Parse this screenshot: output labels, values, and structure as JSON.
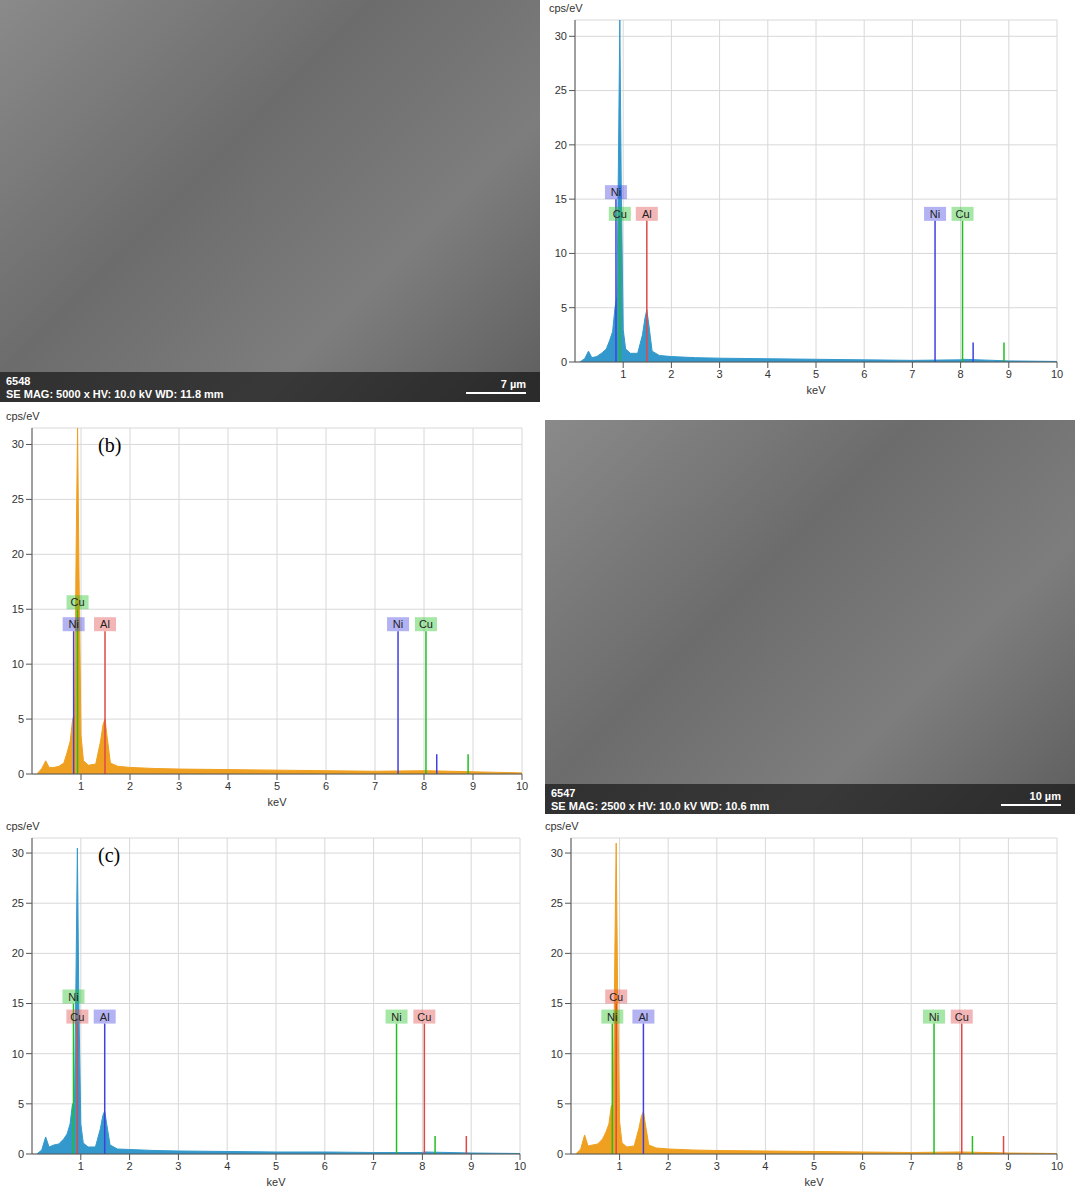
{
  "images": [
    {
      "id_text": "6548",
      "info": "SE MAG: 5000 x HV: 10.0 kV WD: 11.8 mm",
      "scale": "7 µm"
    },
    {
      "id_text": "6547",
      "info": "SE MAG: 2500 x HV: 10.0 kV WD: 10.6 mm",
      "scale": "10 µm"
    }
  ],
  "chart_data": [
    {
      "type": "area",
      "y_label": "cps/eV",
      "x_label": "keV",
      "color": "#3399cc",
      "xlim": [
        0,
        10
      ],
      "xticks": [
        1,
        2,
        3,
        4,
        5,
        6,
        7,
        8,
        9,
        10
      ],
      "ylim": [
        0,
        31.5
      ],
      "yticks": [
        0,
        5,
        10,
        15,
        20,
        25,
        30
      ],
      "grid": true,
      "x": [
        0.1,
        0.2,
        0.28,
        0.35,
        0.45,
        0.55,
        0.65,
        0.72,
        0.78,
        0.83,
        0.87,
        0.9,
        0.93,
        0.96,
        1.0,
        1.05,
        1.15,
        1.3,
        1.4,
        1.45,
        1.49,
        1.53,
        1.6,
        1.75,
        2,
        2.5,
        3,
        4,
        5,
        6,
        7,
        8,
        8.05,
        9,
        10
      ],
      "values": [
        0,
        0.3,
        1.0,
        0.4,
        0.5,
        0.8,
        1.2,
        2.0,
        2.8,
        5,
        6,
        18,
        31.5,
        16,
        3,
        1.2,
        0.8,
        0.8,
        2.5,
        4,
        4.8,
        3.5,
        1,
        0.6,
        0.5,
        0.4,
        0.35,
        0.3,
        0.25,
        0.2,
        0.15,
        0.2,
        0.25,
        0.1,
        0.05
      ],
      "markers": [
        {
          "label": "Ni",
          "energy": 0.85,
          "height": 15,
          "color": "#4040e0"
        },
        {
          "label": "Cu",
          "energy": 0.93,
          "height": 13,
          "color": "#20c020"
        },
        {
          "label": "Al",
          "energy": 1.49,
          "height": 13,
          "color": "#e04848"
        },
        {
          "label": "Ni",
          "energy": 7.47,
          "height": 13,
          "color": "#4040e0"
        },
        {
          "label": "Cu",
          "energy": 8.04,
          "height": 13,
          "color": "#20c020"
        },
        {
          "energy": 8.26,
          "height": 1.8,
          "color": "#4040e0"
        },
        {
          "energy": 8.9,
          "height": 1.8,
          "color": "#20c020"
        }
      ]
    },
    {
      "type": "area",
      "panel_label": "(b)",
      "y_label": "cps/eV",
      "x_label": "keV",
      "color": "#f0a020",
      "xlim": [
        0,
        10
      ],
      "xticks": [
        1,
        2,
        3,
        4,
        5,
        6,
        7,
        8,
        9,
        10
      ],
      "ylim": [
        0,
        31.5
      ],
      "yticks": [
        0,
        5,
        10,
        15,
        20,
        25,
        30
      ],
      "grid": true,
      "x": [
        0.1,
        0.2,
        0.28,
        0.35,
        0.45,
        0.55,
        0.65,
        0.72,
        0.78,
        0.83,
        0.87,
        0.9,
        0.93,
        0.96,
        1.0,
        1.05,
        1.15,
        1.3,
        1.4,
        1.45,
        1.49,
        1.53,
        1.6,
        1.75,
        2,
        2.5,
        3,
        4,
        5,
        6,
        7,
        8,
        8.05,
        9,
        10
      ],
      "values": [
        0,
        0.5,
        1.2,
        0.6,
        0.6,
        0.7,
        1,
        2,
        3,
        5,
        5.5,
        20,
        31.5,
        18,
        3.5,
        1.2,
        0.8,
        0.9,
        3,
        4.5,
        5,
        3.5,
        1,
        0.7,
        0.6,
        0.5,
        0.45,
        0.4,
        0.35,
        0.3,
        0.25,
        0.3,
        0.3,
        0.2,
        0.1
      ],
      "markers": [
        {
          "label": "Cu",
          "energy": 0.93,
          "height": 15,
          "color": "#20c020"
        },
        {
          "label": "Ni",
          "energy": 0.85,
          "height": 13,
          "color": "#4040e0"
        },
        {
          "label": "Al",
          "energy": 1.49,
          "height": 13,
          "color": "#e04848"
        },
        {
          "label": "Ni",
          "energy": 7.47,
          "height": 13,
          "color": "#4040e0"
        },
        {
          "label": "Cu",
          "energy": 8.04,
          "height": 13,
          "color": "#20c020"
        },
        {
          "energy": 8.26,
          "height": 1.8,
          "color": "#4040e0"
        },
        {
          "energy": 8.9,
          "height": 1.8,
          "color": "#20c020"
        }
      ]
    },
    {
      "type": "area",
      "panel_label": "(c)",
      "y_label": "cps/eV",
      "x_label": "keV",
      "color": "#3399cc",
      "xlim": [
        0,
        10
      ],
      "xticks": [
        1,
        2,
        3,
        4,
        5,
        6,
        7,
        8,
        9,
        10
      ],
      "ylim": [
        0,
        31.5
      ],
      "yticks": [
        0,
        5,
        10,
        15,
        20,
        25,
        30
      ],
      "grid": true,
      "x": [
        0.1,
        0.2,
        0.28,
        0.35,
        0.45,
        0.55,
        0.65,
        0.72,
        0.78,
        0.83,
        0.87,
        0.9,
        0.93,
        0.96,
        1.0,
        1.05,
        1.15,
        1.3,
        1.4,
        1.45,
        1.49,
        1.53,
        1.6,
        1.75,
        2,
        2.5,
        3,
        4,
        5,
        6,
        7,
        8,
        8.05,
        9,
        10
      ],
      "values": [
        0,
        0.4,
        1.7,
        0.7,
        0.9,
        1,
        1.5,
        2,
        3,
        5,
        5,
        17,
        30.5,
        15,
        3,
        1.1,
        0.7,
        0.7,
        2.5,
        3.8,
        4.3,
        3,
        0.9,
        0.5,
        0.45,
        0.35,
        0.3,
        0.25,
        0.2,
        0.2,
        0.15,
        0.15,
        0.2,
        0.1,
        0.05
      ],
      "markers": [
        {
          "label": "Ni",
          "energy": 0.85,
          "height": 15,
          "color": "#20c020"
        },
        {
          "label": "Cu",
          "energy": 0.93,
          "height": 13,
          "color": "#e04848"
        },
        {
          "label": "Al",
          "energy": 1.49,
          "height": 13,
          "color": "#4040e0"
        },
        {
          "label": "Ni",
          "energy": 7.47,
          "height": 13,
          "color": "#20c020"
        },
        {
          "label": "Cu",
          "energy": 8.04,
          "height": 13,
          "color": "#e04848"
        },
        {
          "energy": 8.26,
          "height": 1.8,
          "color": "#20c020"
        },
        {
          "energy": 8.9,
          "height": 1.8,
          "color": "#e04848"
        }
      ]
    },
    {
      "type": "area",
      "y_label": "cps/eV",
      "x_label": "keV",
      "color": "#f0a020",
      "xlim": [
        0,
        10
      ],
      "xticks": [
        1,
        2,
        3,
        4,
        5,
        6,
        7,
        8,
        9,
        10
      ],
      "ylim": [
        0,
        31.5
      ],
      "yticks": [
        0,
        5,
        10,
        15,
        20,
        25,
        30
      ],
      "grid": true,
      "x": [
        0.1,
        0.2,
        0.28,
        0.35,
        0.45,
        0.55,
        0.65,
        0.72,
        0.78,
        0.83,
        0.87,
        0.9,
        0.93,
        0.96,
        1.0,
        1.05,
        1.15,
        1.3,
        1.4,
        1.45,
        1.49,
        1.53,
        1.6,
        1.75,
        2,
        2.5,
        3,
        4,
        5,
        6,
        7,
        8,
        8.05,
        9,
        10
      ],
      "values": [
        0,
        0.5,
        1.9,
        0.8,
        0.9,
        1,
        1.5,
        2.2,
        3,
        4.8,
        5,
        19,
        31,
        16,
        3.2,
        1.1,
        0.7,
        0.8,
        2.6,
        3.8,
        4.2,
        3,
        0.9,
        0.6,
        0.5,
        0.4,
        0.35,
        0.3,
        0.25,
        0.2,
        0.15,
        0.2,
        0.2,
        0.1,
        0.05
      ],
      "markers": [
        {
          "label": "Cu",
          "energy": 0.93,
          "height": 15,
          "color": "#e04848"
        },
        {
          "label": "Ni",
          "energy": 0.85,
          "height": 13,
          "color": "#20c020"
        },
        {
          "label": "Al",
          "energy": 1.49,
          "height": 13,
          "color": "#4040e0"
        },
        {
          "label": "Ni",
          "energy": 7.47,
          "height": 13,
          "color": "#20c020"
        },
        {
          "label": "Cu",
          "energy": 8.04,
          "height": 13,
          "color": "#e04848"
        },
        {
          "energy": 8.26,
          "height": 1.8,
          "color": "#20c020"
        },
        {
          "energy": 8.9,
          "height": 1.8,
          "color": "#e04848"
        }
      ]
    }
  ]
}
